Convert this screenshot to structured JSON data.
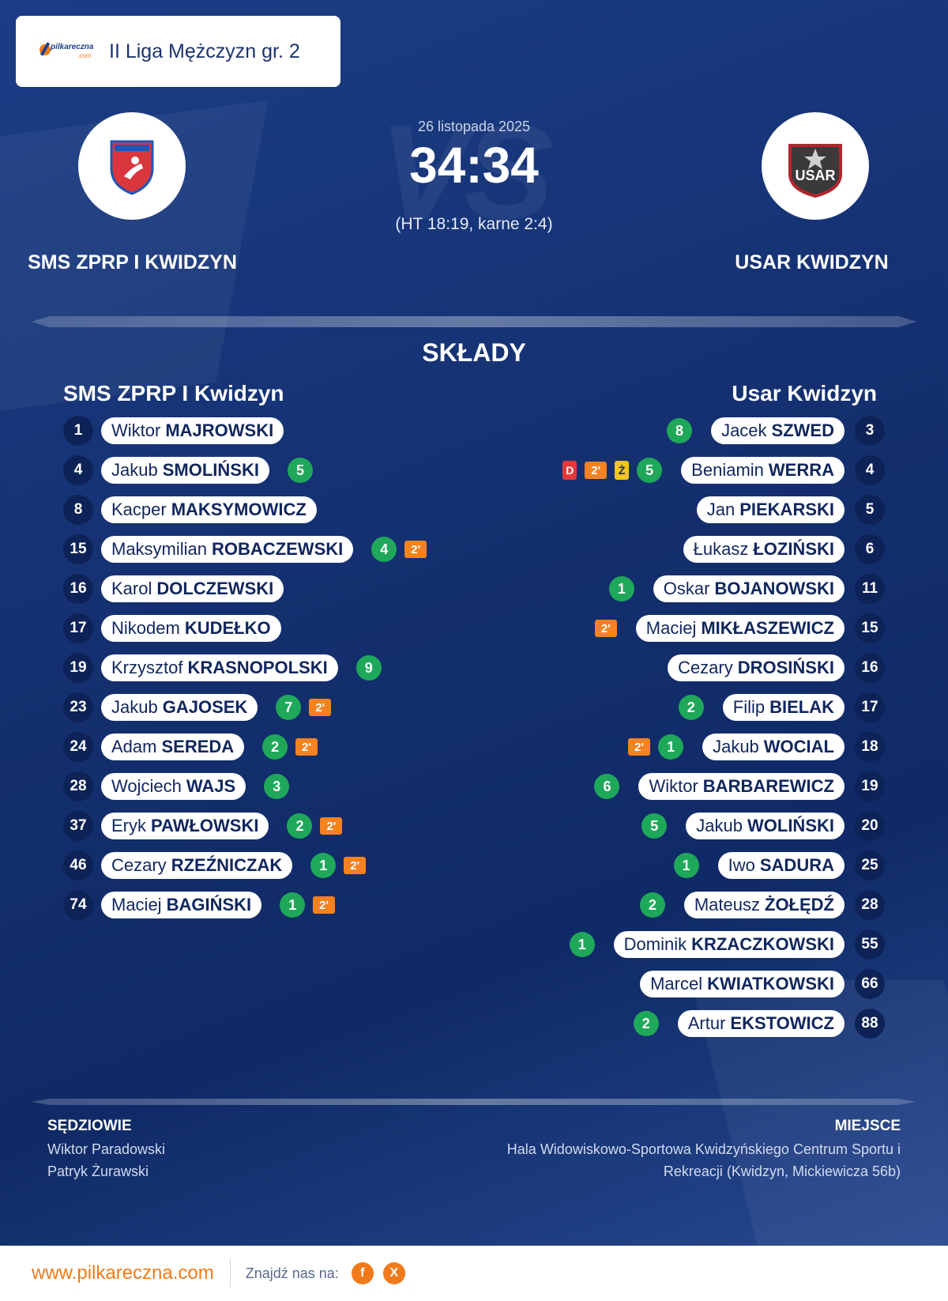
{
  "league": {
    "logo_text": "pilkareczna",
    "logo_suffix": ".com",
    "title": "II Liga Mężczyzn gr. 2"
  },
  "match": {
    "date": "26 listopada 2025",
    "score": "34:34",
    "detail": "(HT 18:19, karne 2:4)",
    "vs_text": "VS",
    "home_name": "SMS ZPRP I KWIDZYN",
    "away_name": "USAR KWIDZYN",
    "away_badge_text": "USAR"
  },
  "lineups": {
    "title": "SKŁADY",
    "home_title": "SMS ZPRP I Kwidzyn",
    "away_title": "Usar Kwidzyn",
    "home": [
      {
        "num": "1",
        "first": "Wiktor",
        "last": "MAJROWSKI",
        "goals": "",
        "susp": "",
        "yellow": "",
        "red": ""
      },
      {
        "num": "4",
        "first": "Jakub",
        "last": "SMOLIŃSKI",
        "goals": "5",
        "susp": "",
        "yellow": "",
        "red": ""
      },
      {
        "num": "8",
        "first": "Kacper",
        "last": "MAKSYMOWICZ",
        "goals": "",
        "susp": "",
        "yellow": "",
        "red": ""
      },
      {
        "num": "15",
        "first": "Maksymilian",
        "last": "ROBACZEWSKI",
        "goals": "4",
        "susp": "2'",
        "yellow": "",
        "red": ""
      },
      {
        "num": "16",
        "first": "Karol",
        "last": "DOLCZEWSKI",
        "goals": "",
        "susp": "",
        "yellow": "",
        "red": ""
      },
      {
        "num": "17",
        "first": "Nikodem",
        "last": "KUDEŁKO",
        "goals": "",
        "susp": "",
        "yellow": "",
        "red": ""
      },
      {
        "num": "19",
        "first": "Krzysztof",
        "last": "KRASNOPOLSKI",
        "goals": "9",
        "susp": "",
        "yellow": "",
        "red": ""
      },
      {
        "num": "23",
        "first": "Jakub",
        "last": "GAJOSEK",
        "goals": "7",
        "susp": "2'",
        "yellow": "",
        "red": ""
      },
      {
        "num": "24",
        "first": "Adam",
        "last": "SEREDA",
        "goals": "2",
        "susp": "2'",
        "yellow": "",
        "red": ""
      },
      {
        "num": "28",
        "first": "Wojciech",
        "last": "WAJS",
        "goals": "3",
        "susp": "",
        "yellow": "",
        "red": ""
      },
      {
        "num": "37",
        "first": "Eryk",
        "last": "PAWŁOWSKI",
        "goals": "2",
        "susp": "2'",
        "yellow": "",
        "red": ""
      },
      {
        "num": "46",
        "first": "Cezary",
        "last": "RZEŹNICZAK",
        "goals": "1",
        "susp": "2'",
        "yellow": "",
        "red": ""
      },
      {
        "num": "74",
        "first": "Maciej",
        "last": "BAGIŃSKI",
        "goals": "1",
        "susp": "2'",
        "yellow": "",
        "red": ""
      }
    ],
    "away": [
      {
        "num": "3",
        "first": "Jacek",
        "last": "SZWED",
        "goals": "8",
        "susp": "",
        "yellow": "",
        "red": ""
      },
      {
        "num": "4",
        "first": "Beniamin",
        "last": "WERRA",
        "goals": "5",
        "susp": "2'",
        "yellow": "Ż",
        "red": "D"
      },
      {
        "num": "5",
        "first": "Jan",
        "last": "PIEKARSKI",
        "goals": "",
        "susp": "",
        "yellow": "",
        "red": ""
      },
      {
        "num": "6",
        "first": "Łukasz",
        "last": "ŁOZIŃSKI",
        "goals": "",
        "susp": "",
        "yellow": "",
        "red": ""
      },
      {
        "num": "11",
        "first": "Oskar",
        "last": "BOJANOWSKI",
        "goals": "1",
        "susp": "",
        "yellow": "",
        "red": ""
      },
      {
        "num": "15",
        "first": "Maciej",
        "last": "MIKŁASZEWICZ",
        "goals": "",
        "susp": "2'",
        "yellow": "",
        "red": ""
      },
      {
        "num": "16",
        "first": "Cezary",
        "last": "DROSIŃSKI",
        "goals": "",
        "susp": "",
        "yellow": "",
        "red": ""
      },
      {
        "num": "17",
        "first": "Filip",
        "last": "BIELAK",
        "goals": "2",
        "susp": "",
        "yellow": "",
        "red": ""
      },
      {
        "num": "18",
        "first": "Jakub",
        "last": "WOCIAL",
        "goals": "1",
        "susp": "2'",
        "yellow": "",
        "red": ""
      },
      {
        "num": "19",
        "first": "Wiktor",
        "last": "BARBAREWICZ",
        "goals": "6",
        "susp": "",
        "yellow": "",
        "red": ""
      },
      {
        "num": "20",
        "first": "Jakub",
        "last": "WOLIŃSKI",
        "goals": "5",
        "susp": "",
        "yellow": "",
        "red": ""
      },
      {
        "num": "25",
        "first": "Iwo",
        "last": "SADURA",
        "goals": "1",
        "susp": "",
        "yellow": "",
        "red": ""
      },
      {
        "num": "28",
        "first": "Mateusz",
        "last": "ŻOŁĘDŹ",
        "goals": "2",
        "susp": "",
        "yellow": "",
        "red": ""
      },
      {
        "num": "55",
        "first": "Dominik",
        "last": "KRZACZKOWSKI",
        "goals": "1",
        "susp": "",
        "yellow": "",
        "red": ""
      },
      {
        "num": "66",
        "first": "Marcel",
        "last": "KWIATKOWSKI",
        "goals": "",
        "susp": "",
        "yellow": "",
        "red": ""
      },
      {
        "num": "88",
        "first": "Artur",
        "last": "EKSTOWICZ",
        "goals": "2",
        "susp": "",
        "yellow": "",
        "red": ""
      }
    ]
  },
  "info": {
    "referees_label": "SĘDZIOWIE",
    "referees": [
      "Wiktor Paradowski",
      "Patryk Żurawski"
    ],
    "venue_label": "MIEJSCE",
    "venue_line1": "Hala Widowiskowo-Sportowa Kwidzyńskiego Centrum Sportu i",
    "venue_line2": "Rekreacji (Kwidzyn, Mickiewicza 56b)"
  },
  "footer": {
    "site": "www.pilkareczna.com",
    "find_us": "Znajdź nas na:",
    "social": [
      {
        "icon": "facebook-icon",
        "glyph": "f"
      },
      {
        "icon": "x-icon",
        "glyph": "X"
      }
    ],
    "accent_color": "#f07a1a"
  }
}
